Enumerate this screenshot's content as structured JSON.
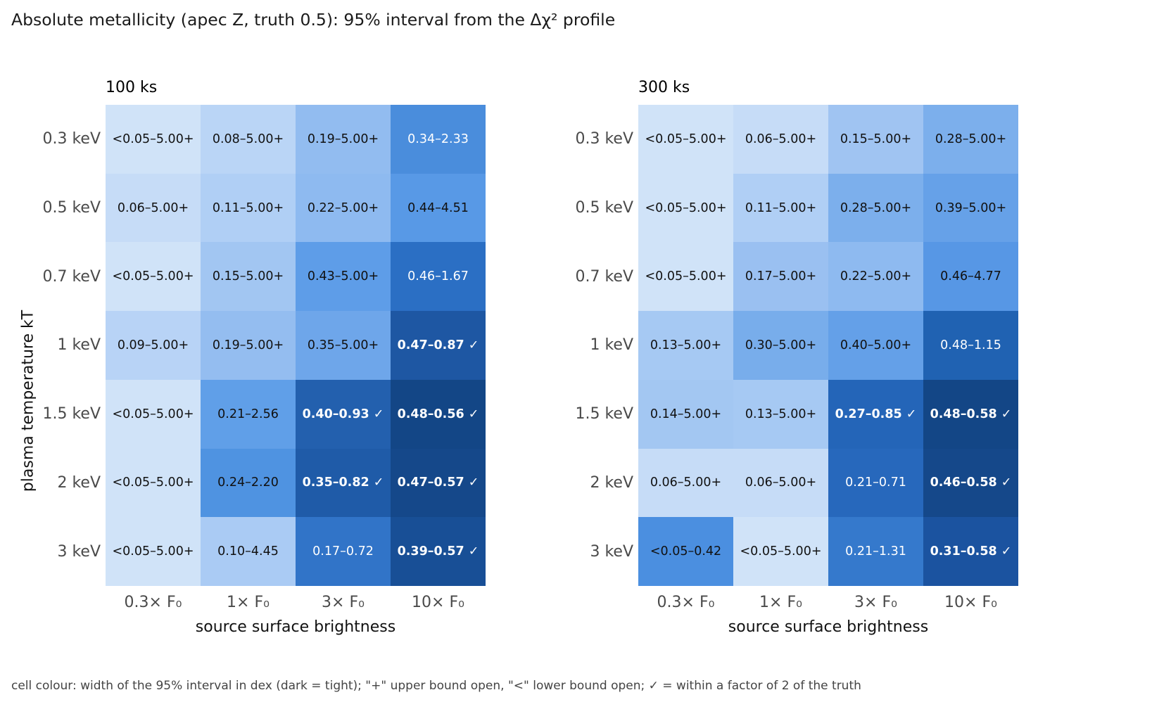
{
  "title": "Absolute metallicity (apec Z, truth 0.5): 95% interval from the Δχ² profile",
  "caption": "cell colour: width of the 95% interval in dex (dark = tight); \"+\" upper bound open, \"<\" lower bound open; ✓ = within a factor of 2 of the truth",
  "chart_data": [
    {
      "type": "heatmap",
      "title": "100 ks",
      "xlabel": "source surface brightness",
      "ylabel": "plasma temperature kT",
      "x_categories": [
        "0.3× F₀",
        "1× F₀",
        "3× F₀",
        "10× F₀"
      ],
      "y_categories": [
        "0.3 keV",
        "0.5 keV",
        "0.7 keV",
        "1 keV",
        "1.5 keV",
        "2 keV",
        "3 keV"
      ],
      "cells": [
        [
          {
            "text": "<0.05–5.00+",
            "color": "#d0e3f8",
            "light": false,
            "bold": false
          },
          {
            "text": "0.08–5.00+",
            "color": "#bad5f6",
            "light": false,
            "bold": false
          },
          {
            "text": "0.19–5.00+",
            "color": "#92bcf0",
            "light": false,
            "bold": false
          },
          {
            "text": "0.34–2.33",
            "color": "#4a8ddc",
            "light": true,
            "bold": false
          }
        ],
        [
          {
            "text": "0.06–5.00+",
            "color": "#c6dcf7",
            "light": false,
            "bold": false
          },
          {
            "text": "0.11–5.00+",
            "color": "#b0cff5",
            "light": false,
            "bold": false
          },
          {
            "text": "0.22–5.00+",
            "color": "#8ebaf0",
            "light": false,
            "bold": false
          },
          {
            "text": "0.44–4.51",
            "color": "#5899e6",
            "light": false,
            "bold": false
          }
        ],
        [
          {
            "text": "<0.05–5.00+",
            "color": "#d0e3f8",
            "light": false,
            "bold": false
          },
          {
            "text": "0.15–5.00+",
            "color": "#a2c6f2",
            "light": false,
            "bold": false
          },
          {
            "text": "0.43–5.00+",
            "color": "#5e9de8",
            "light": false,
            "bold": false
          },
          {
            "text": "0.46–1.67",
            "color": "#2b6fc4",
            "light": true,
            "bold": false
          }
        ],
        [
          {
            "text": "0.09–5.00+",
            "color": "#b8d3f6",
            "light": false,
            "bold": false
          },
          {
            "text": "0.19–5.00+",
            "color": "#94bdf0",
            "light": false,
            "bold": false
          },
          {
            "text": "0.35–5.00+",
            "color": "#6ea6ea",
            "light": false,
            "bold": false
          },
          {
            "text": "0.47–0.87 ✓",
            "color": "#1e57a3",
            "light": true,
            "bold": true
          }
        ],
        [
          {
            "text": "<0.05–5.00+",
            "color": "#d0e3f8",
            "light": false,
            "bold": false
          },
          {
            "text": "0.21–2.56",
            "color": "#609fe8",
            "light": false,
            "bold": false
          },
          {
            "text": "0.40–0.93 ✓",
            "color": "#2360ae",
            "light": true,
            "bold": true
          },
          {
            "text": "0.48–0.56 ✓",
            "color": "#134686",
            "light": true,
            "bold": true
          }
        ],
        [
          {
            "text": "<0.05–5.00+",
            "color": "#d0e3f8",
            "light": false,
            "bold": false
          },
          {
            "text": "0.24–2.20",
            "color": "#4f93e1",
            "light": false,
            "bold": false
          },
          {
            "text": "0.35–0.82 ✓",
            "color": "#1f5ba8",
            "light": true,
            "bold": true
          },
          {
            "text": "0.47–0.57 ✓",
            "color": "#15488a",
            "light": true,
            "bold": true
          }
        ],
        [
          {
            "text": "<0.05–5.00+",
            "color": "#d0e3f8",
            "light": false,
            "bold": false
          },
          {
            "text": "0.10–4.45",
            "color": "#aacbf4",
            "light": false,
            "bold": false
          },
          {
            "text": "0.17–0.72",
            "color": "#3174c8",
            "light": true,
            "bold": false
          },
          {
            "text": "0.39–0.57 ✓",
            "color": "#184f96",
            "light": true,
            "bold": true
          }
        ]
      ]
    },
    {
      "type": "heatmap",
      "title": "300 ks",
      "xlabel": "source surface brightness",
      "ylabel": "",
      "x_categories": [
        "0.3× F₀",
        "1× F₀",
        "3× F₀",
        "10× F₀"
      ],
      "y_categories": [
        "0.3 keV",
        "0.5 keV",
        "0.7 keV",
        "1 keV",
        "1.5 keV",
        "2 keV",
        "3 keV"
      ],
      "cells": [
        [
          {
            "text": "<0.05–5.00+",
            "color": "#d0e3f8",
            "light": false,
            "bold": false
          },
          {
            "text": "0.06–5.00+",
            "color": "#c6dcf7",
            "light": false,
            "bold": false
          },
          {
            "text": "0.15–5.00+",
            "color": "#a0c4f2",
            "light": false,
            "bold": false
          },
          {
            "text": "0.28–5.00+",
            "color": "#7cafec",
            "light": false,
            "bold": false
          }
        ],
        [
          {
            "text": "<0.05–5.00+",
            "color": "#d0e3f8",
            "light": false,
            "bold": false
          },
          {
            "text": "0.11–5.00+",
            "color": "#b0cff5",
            "light": false,
            "bold": false
          },
          {
            "text": "0.28–5.00+",
            "color": "#7cafec",
            "light": false,
            "bold": false
          },
          {
            "text": "0.39–5.00+",
            "color": "#66a1e8",
            "light": false,
            "bold": false
          }
        ],
        [
          {
            "text": "<0.05–5.00+",
            "color": "#d0e3f8",
            "light": false,
            "bold": false
          },
          {
            "text": "0.17–5.00+",
            "color": "#9ac0f1",
            "light": false,
            "bold": false
          },
          {
            "text": "0.22–5.00+",
            "color": "#8ebaf0",
            "light": false,
            "bold": false
          },
          {
            "text": "0.46–4.77",
            "color": "#5797e5",
            "light": false,
            "bold": false
          }
        ],
        [
          {
            "text": "0.13–5.00+",
            "color": "#a6c9f3",
            "light": false,
            "bold": false
          },
          {
            "text": "0.30–5.00+",
            "color": "#78adeb",
            "light": false,
            "bold": false
          },
          {
            "text": "0.40–5.00+",
            "color": "#64a0e8",
            "light": false,
            "bold": false
          },
          {
            "text": "0.48–1.15",
            "color": "#2062b2",
            "light": true,
            "bold": false
          }
        ],
        [
          {
            "text": "0.14–5.00+",
            "color": "#a3c7f2",
            "light": false,
            "bold": false
          },
          {
            "text": "0.13–5.00+",
            "color": "#a6c9f3",
            "light": false,
            "bold": false
          },
          {
            "text": "0.27–0.85 ✓",
            "color": "#2465b8",
            "light": true,
            "bold": true
          },
          {
            "text": "0.48–0.58 ✓",
            "color": "#134686",
            "light": true,
            "bold": true
          }
        ],
        [
          {
            "text": "0.06–5.00+",
            "color": "#c6dcf7",
            "light": false,
            "bold": false
          },
          {
            "text": "0.06–5.00+",
            "color": "#c6dcf7",
            "light": false,
            "bold": false
          },
          {
            "text": "0.21–0.71",
            "color": "#2768bc",
            "light": true,
            "bold": false
          },
          {
            "text": "0.46–0.58 ✓",
            "color": "#15488a",
            "light": true,
            "bold": true
          }
        ],
        [
          {
            "text": "<0.05–0.42",
            "color": "#4b8fe0",
            "light": false,
            "bold": false
          },
          {
            "text": "<0.05–5.00+",
            "color": "#d0e3f8",
            "light": false,
            "bold": false
          },
          {
            "text": "0.21–1.31",
            "color": "#3579cc",
            "light": true,
            "bold": false
          },
          {
            "text": "0.31–0.58 ✓",
            "color": "#1b53a0",
            "light": true,
            "bold": true
          }
        ]
      ]
    }
  ]
}
